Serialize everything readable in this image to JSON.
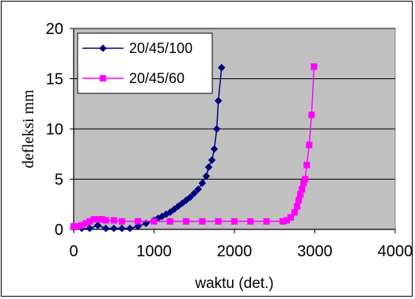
{
  "chart_data": {
    "type": "line",
    "xlabel": "waktu (det.)",
    "ylabel": "defleksi mm",
    "xlim": [
      0,
      4000
    ],
    "ylim": [
      0,
      20
    ],
    "xticks": [
      "0",
      "1000",
      "2000",
      "3000",
      "4000"
    ],
    "yticks": [
      "0",
      "5",
      "10",
      "15",
      "20"
    ],
    "grid": "horizontal",
    "plot_background": "#c0c0c0",
    "legend_position": "top-left",
    "series": [
      {
        "name": "20/45/100",
        "color": "#000080",
        "marker": "diamond",
        "x": [
          0,
          100,
          200,
          300,
          400,
          500,
          600,
          700,
          800,
          900,
          1000,
          1050,
          1100,
          1150,
          1200,
          1250,
          1300,
          1350,
          1400,
          1450,
          1500,
          1550,
          1600,
          1650,
          1680,
          1720,
          1750,
          1780,
          1800,
          1840
        ],
        "y": [
          0.2,
          0.1,
          0.1,
          0.4,
          0.1,
          0.1,
          0.1,
          0.1,
          0.3,
          0.6,
          0.9,
          1.1,
          1.3,
          1.5,
          1.7,
          2.0,
          2.3,
          2.6,
          2.9,
          3.2,
          3.6,
          4.0,
          4.6,
          5.3,
          6.2,
          6.9,
          8.0,
          10.0,
          12.8,
          16.1
        ]
      },
      {
        "name": "20/45/60",
        "color": "#ff00ff",
        "marker": "square",
        "x": [
          0,
          50,
          100,
          150,
          200,
          250,
          300,
          350,
          400,
          500,
          600,
          800,
          1000,
          1200,
          1400,
          1600,
          1800,
          2000,
          2200,
          2400,
          2600,
          2650,
          2700,
          2750,
          2780,
          2800,
          2820,
          2840,
          2860,
          2880,
          2900,
          2930,
          2960,
          2990
        ],
        "y": [
          0.3,
          0.3,
          0.4,
          0.6,
          0.8,
          1.0,
          1.0,
          1.0,
          0.9,
          0.9,
          0.8,
          0.8,
          0.8,
          0.8,
          0.8,
          0.8,
          0.8,
          0.8,
          0.8,
          0.8,
          0.8,
          0.9,
          1.2,
          1.7,
          2.3,
          2.9,
          3.5,
          4.0,
          4.6,
          5.0,
          6.4,
          8.4,
          11.4,
          16.2
        ]
      }
    ]
  }
}
